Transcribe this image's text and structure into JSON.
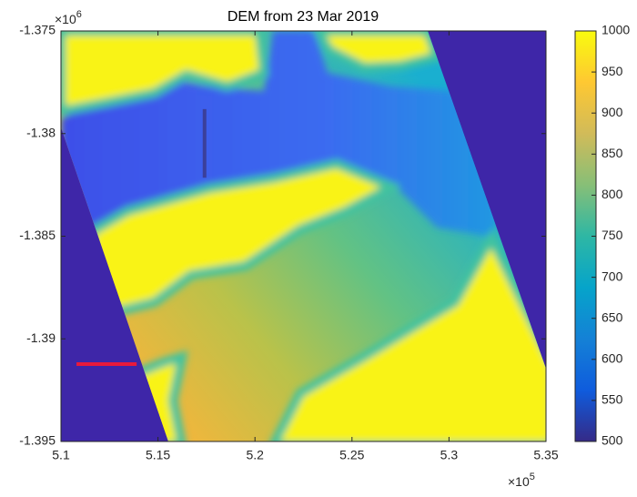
{
  "chart_data": {
    "type": "image",
    "title": "DEM from 23 Mar 2019",
    "xlim": [
      510000,
      535000
    ],
    "ylim": [
      -1395000,
      -1375000
    ],
    "xticks": [
      {
        "value": 510000,
        "label": "5.1"
      },
      {
        "value": 515000,
        "label": "5.15"
      },
      {
        "value": 520000,
        "label": "5.2"
      },
      {
        "value": 525000,
        "label": "5.25"
      },
      {
        "value": 530000,
        "label": "5.3"
      },
      {
        "value": 535000,
        "label": "5.35"
      }
    ],
    "yticks": [
      {
        "value": -1375000,
        "label": "-1.375"
      },
      {
        "value": -1380000,
        "label": "-1.38"
      },
      {
        "value": -1385000,
        "label": "-1.385"
      },
      {
        "value": -1390000,
        "label": "-1.39"
      },
      {
        "value": -1395000,
        "label": "-1.395"
      }
    ],
    "x_multiplier": {
      "base": "×10",
      "exponent": "5"
    },
    "y_multiplier": {
      "base": "×10",
      "exponent": "6"
    },
    "colorbar": {
      "colormap": "parula",
      "clim": [
        500,
        1000
      ],
      "ticks": [
        500,
        550,
        600,
        650,
        700,
        750,
        800,
        850,
        900,
        950,
        1000
      ]
    },
    "lines": [
      {
        "x": [
          510800,
          513900
        ],
        "y": [
          -1391230,
          -1391230
        ],
        "color": "#e8193c"
      },
      {
        "x": [
          517400,
          517400
        ],
        "y": [
          -1378810,
          -1382150
        ],
        "color": "#3b3f9a"
      }
    ]
  }
}
